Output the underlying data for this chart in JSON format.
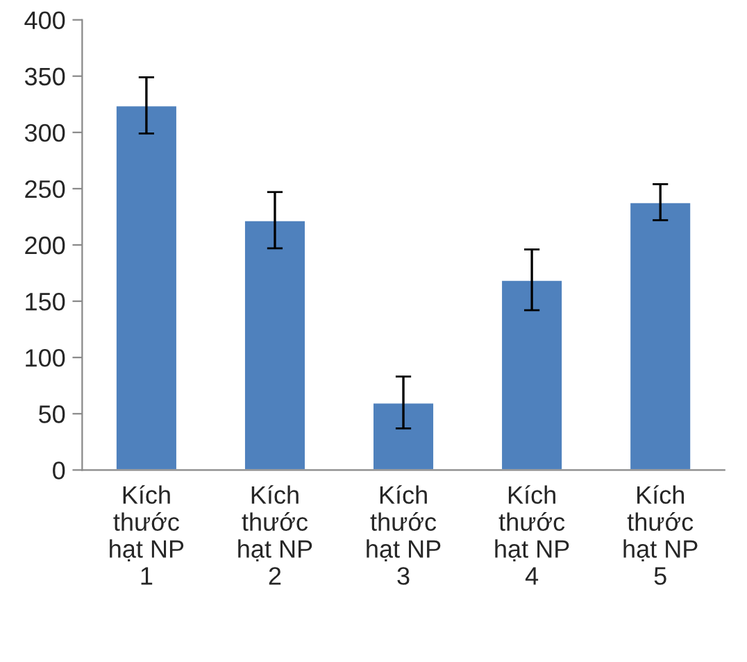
{
  "chart_data": {
    "type": "bar",
    "categories": [
      "Kích\nthước\nhạt NP\n1",
      "Kích\nthước\nhạt NP\n2",
      "Kích\nthước\nhạt NP\n3",
      "Kích\nthước\nhạt NP\n4",
      "Kích\nthước\nhạt NP\n5"
    ],
    "values": [
      324,
      222,
      60,
      169,
      238
    ],
    "errors": [
      25,
      25,
      23,
      27,
      16
    ],
    "color": "#4f81bd",
    "ylim": [
      0,
      400
    ],
    "yticks": [
      0,
      50,
      100,
      150,
      200,
      250,
      300,
      350,
      400
    ],
    "grid": false
  }
}
